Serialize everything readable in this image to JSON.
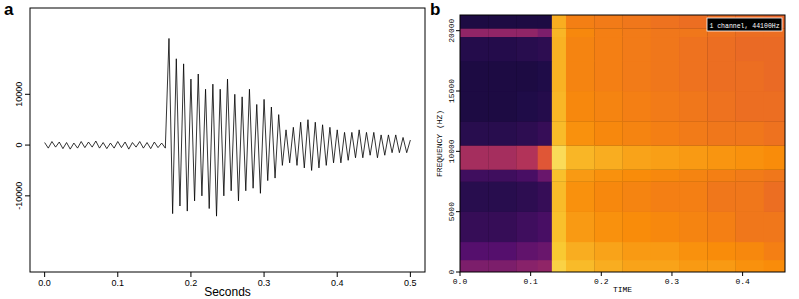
{
  "chart_data": [
    {
      "type": "line",
      "title": "a",
      "x_label": "Seconds",
      "color": "#000000",
      "xlim": [
        -0.02,
        0.52
      ],
      "xticks": [
        {
          "value": 0,
          "label": "0.0"
        },
        0.1,
        0.2,
        0.3,
        0.4,
        0.5
      ],
      "ylim": [
        -25000,
        27000
      ],
      "yticks": [
        -10000,
        0,
        10000
      ],
      "x": [
        0,
        0.005,
        0.01,
        0.015,
        0.02,
        0.025,
        0.03,
        0.035,
        0.04,
        0.045,
        0.05,
        0.055,
        0.06,
        0.065,
        0.07,
        0.075,
        0.08,
        0.085,
        0.09,
        0.095,
        0.1,
        0.105,
        0.11,
        0.115,
        0.12,
        0.125,
        0.13,
        0.135,
        0.14,
        0.145,
        0.15,
        0.155,
        0.16,
        0.165,
        0.17,
        0.175,
        0.18,
        0.185,
        0.19,
        0.195,
        0.2,
        0.205,
        0.21,
        0.215,
        0.22,
        0.225,
        0.23,
        0.235,
        0.24,
        0.245,
        0.25,
        0.255,
        0.26,
        0.265,
        0.27,
        0.275,
        0.28,
        0.285,
        0.29,
        0.295,
        0.3,
        0.305,
        0.31,
        0.315,
        0.32,
        0.325,
        0.33,
        0.335,
        0.34,
        0.345,
        0.35,
        0.355,
        0.36,
        0.365,
        0.37,
        0.375,
        0.38,
        0.385,
        0.39,
        0.395,
        0.4,
        0.405,
        0.41,
        0.415,
        0.42,
        0.425,
        0.43,
        0.435,
        0.44,
        0.445,
        0.45,
        0.455,
        0.46,
        0.465,
        0.47,
        0.475,
        0.48,
        0.485,
        0.49,
        0.495,
        0.5
      ],
      "values": [
        500,
        -600,
        700,
        -400,
        600,
        -700,
        500,
        -800,
        400,
        -600,
        700,
        -500,
        600,
        -400,
        800,
        -600,
        500,
        -700,
        400,
        -600,
        700,
        -500,
        600,
        -800,
        500,
        -400,
        700,
        -600,
        500,
        -700,
        600,
        -500,
        400,
        -600,
        21000,
        -13500,
        17000,
        -12000,
        16000,
        -13000,
        13000,
        -11000,
        14000,
        -10000,
        11000,
        -12500,
        12000,
        -14000,
        11000,
        -10000,
        13000,
        -9000,
        10000,
        -11000,
        9500,
        -9000,
        11000,
        -8500,
        8000,
        -9500,
        9000,
        -7000,
        7500,
        -6500,
        6000,
        -4000,
        3000,
        -3500,
        3500,
        -4000,
        4500,
        -4500,
        5000,
        -5000,
        4500,
        -4500,
        4000,
        -4000,
        3500,
        -3500,
        3000,
        -3500,
        2500,
        -3000,
        2500,
        -2500,
        3000,
        -2500,
        2500,
        -2000,
        2500,
        -2500,
        2000,
        -2000,
        2000,
        -1500,
        2000,
        -1500,
        1500,
        -1500,
        1000
      ]
    },
    {
      "type": "heatmap",
      "title": "b",
      "x_label": "TIME",
      "y_label": "FREQUENCY (HZ)",
      "annotation": "1 channel, 44100Hz",
      "xlim": [
        0,
        0.46
      ],
      "xticks": [
        {
          "value": 0,
          "label": "0.0"
        },
        0.1,
        0.2,
        0.3,
        0.4
      ],
      "ylim": [
        0,
        21300
      ],
      "yticks": [
        0,
        5000,
        10000,
        15000,
        20000
      ],
      "zlim": [
        0,
        100
      ],
      "time_bins": [
        0,
        0.04,
        0.08,
        0.11,
        0.13,
        0.15,
        0.19,
        0.23,
        0.27,
        0.31,
        0.35,
        0.39,
        0.43,
        0.46
      ],
      "freq_bins": [
        0,
        1000,
        2500,
        5000,
        7500,
        8500,
        10500,
        12500,
        15000,
        17500,
        19500,
        20200,
        21300
      ],
      "cells": [
        [
          35,
          35,
          38,
          40,
          90,
          85,
          82,
          80,
          80,
          78,
          78,
          76,
          75
        ],
        [
          25,
          25,
          28,
          30,
          88,
          82,
          80,
          78,
          78,
          76,
          75,
          74,
          72
        ],
        [
          18,
          18,
          20,
          22,
          86,
          78,
          76,
          75,
          74,
          73,
          72,
          70,
          70
        ],
        [
          15,
          15,
          16,
          18,
          85,
          76,
          74,
          73,
          72,
          72,
          70,
          70,
          68
        ],
        [
          20,
          20,
          22,
          30,
          86,
          78,
          76,
          75,
          74,
          73,
          72,
          71,
          70
        ],
        [
          45,
          45,
          48,
          62,
          92,
          84,
          82,
          80,
          79,
          78,
          77,
          76,
          75
        ],
        [
          15,
          15,
          16,
          18,
          85,
          76,
          74,
          73,
          72,
          71,
          70,
          70,
          69
        ],
        [
          12,
          12,
          13,
          14,
          84,
          74,
          73,
          72,
          71,
          70,
          69,
          68,
          68
        ],
        [
          12,
          12,
          12,
          13,
          83,
          73,
          72,
          71,
          70,
          69,
          68,
          68,
          67
        ],
        [
          14,
          14,
          15,
          16,
          83,
          73,
          72,
          71,
          70,
          69,
          68,
          67,
          67
        ],
        [
          40,
          40,
          40,
          35,
          84,
          74,
          72,
          71,
          70,
          70,
          69,
          68,
          68
        ],
        [
          12,
          12,
          12,
          12,
          82,
          72,
          71,
          70,
          69,
          68,
          68,
          67,
          66
        ]
      ]
    }
  ]
}
